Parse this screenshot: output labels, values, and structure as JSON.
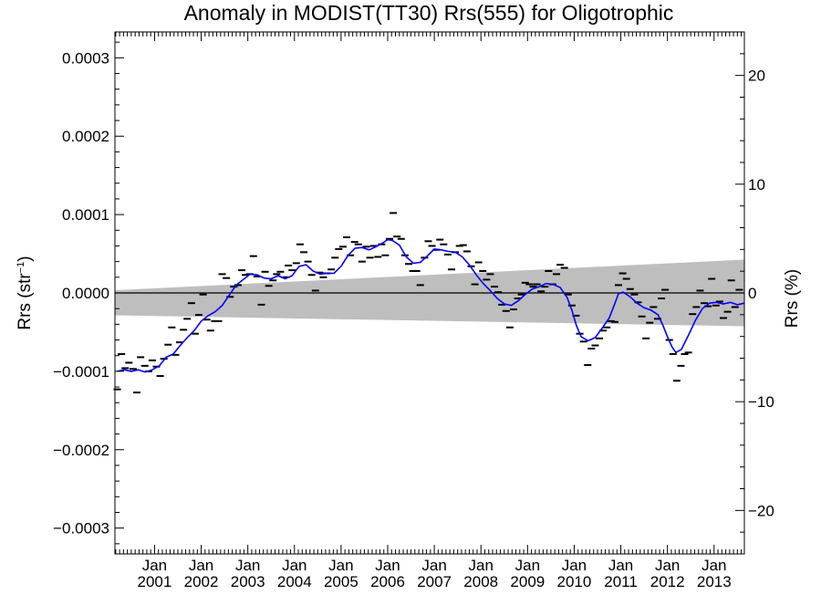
{
  "chart_data": {
    "type": "line",
    "title": "Anomaly in MODIST(TT30) Rrs(555) for Oligotrophic",
    "ylabel_left": "Rrs (str",
    "ylabel_left_sup": "−1",
    "ylabel_left_close": ")",
    "ylabel_right": "Rrs (%)",
    "xlim": [
      2000.15,
      2013.65
    ],
    "ylim_left": [
      -0.000333,
      0.000333
    ],
    "ylim_right": [
      -24,
      24
    ],
    "left_ticks": [
      {
        "value": 0.0003,
        "label": "0.0003"
      },
      {
        "value": 0.0002,
        "label": "0.0002"
      },
      {
        "value": 0.0001,
        "label": "0.0001"
      },
      {
        "value": 0.0,
        "label": "0.0000"
      },
      {
        "value": -0.0001,
        "label": "−0.0001"
      },
      {
        "value": -0.0002,
        "label": "−0.0002"
      },
      {
        "value": -0.0003,
        "label": "−0.0003"
      }
    ],
    "right_ticks": [
      {
        "value": 20,
        "label": "20"
      },
      {
        "value": 10,
        "label": "10"
      },
      {
        "value": 0,
        "label": "0"
      },
      {
        "value": -10,
        "label": "−10"
      },
      {
        "value": -20,
        "label": "−20"
      }
    ],
    "x_ticks": [
      {
        "value": 2001.0,
        "month": "Jan",
        "year": "2001"
      },
      {
        "value": 2002.0,
        "month": "Jan",
        "year": "2002"
      },
      {
        "value": 2003.0,
        "month": "Jan",
        "year": "2003"
      },
      {
        "value": 2004.0,
        "month": "Jan",
        "year": "2004"
      },
      {
        "value": 2005.0,
        "month": "Jan",
        "year": "2005"
      },
      {
        "value": 2006.0,
        "month": "Jan",
        "year": "2006"
      },
      {
        "value": 2007.0,
        "month": "Jan",
        "year": "2007"
      },
      {
        "value": 2008.0,
        "month": "Jan",
        "year": "2008"
      },
      {
        "value": 2009.0,
        "month": "Jan",
        "year": "2009"
      },
      {
        "value": 2010.0,
        "month": "Jan",
        "year": "2010"
      },
      {
        "value": 2011.0,
        "month": "Jan",
        "year": "2011"
      },
      {
        "value": 2012.0,
        "month": "Jan",
        "year": "2012"
      },
      {
        "value": 2013.0,
        "month": "Jan",
        "year": "2013"
      }
    ],
    "band": {
      "x": [
        2000.15,
        2013.65
      ],
      "upper": [
        3.5e-06,
        4.25e-05
      ],
      "lower": [
        -2.85e-05,
        -4.25e-05
      ]
    },
    "monthly_points": [
      [
        2000.2,
        -0.000123
      ],
      [
        2000.29,
        -7.8e-05
      ],
      [
        2000.37,
        -9.6e-05
      ],
      [
        2000.45,
        -8.9e-05
      ],
      [
        2000.54,
        -9.7e-05
      ],
      [
        2000.62,
        -0.000127
      ],
      [
        2000.7,
        -8.2e-05
      ],
      [
        2000.79,
        -9.3e-05
      ],
      [
        2000.87,
        -0.0001
      ],
      [
        2000.95,
        -8.6e-05
      ],
      [
        2001.04,
        -9.4e-05
      ],
      [
        2001.12,
        -0.000106
      ],
      [
        2001.2,
        -8.4e-05
      ],
      [
        2001.29,
        -6.6e-05
      ],
      [
        2001.37,
        -4.4e-05
      ],
      [
        2001.45,
        -7.9e-05
      ],
      [
        2001.54,
        -6.3e-05
      ],
      [
        2001.62,
        -4.7e-05
      ],
      [
        2001.7,
        -3.3e-05
      ],
      [
        2001.79,
        -1.3e-05
      ],
      [
        2001.87,
        -5.2e-05
      ],
      [
        2001.95,
        -2.8e-05
      ],
      [
        2002.04,
        -2e-06
      ],
      [
        2002.12,
        -3.4e-05
      ],
      [
        2002.2,
        -4.8e-05
      ],
      [
        2002.29,
        -3.6e-05
      ],
      [
        2002.37,
        -3.6e-05
      ],
      [
        2002.45,
        2.4e-05
      ],
      [
        2002.54,
        1.9e-05
      ],
      [
        2002.62,
        -5e-06
      ],
      [
        2002.7,
        8e-06
      ],
      [
        2002.79,
        1e-05
      ],
      [
        2002.87,
        2.9e-05
      ],
      [
        2002.95,
        2.3e-05
      ],
      [
        2003.04,
        2.4e-05
      ],
      [
        2003.12,
        4.7e-05
      ],
      [
        2003.2,
        2.1e-05
      ],
      [
        2003.29,
        -1.5e-05
      ],
      [
        2003.37,
        2.7e-05
      ],
      [
        2003.45,
        9e-06
      ],
      [
        2003.54,
        1.6e-05
      ],
      [
        2003.62,
        2.4e-05
      ],
      [
        2003.7,
        2.7e-05
      ],
      [
        2003.79,
        2e-05
      ],
      [
        2003.87,
        3.5e-05
      ],
      [
        2003.95,
        2.9e-05
      ],
      [
        2004.04,
        3.8e-05
      ],
      [
        2004.12,
        6.2e-05
      ],
      [
        2004.2,
        5.2e-05
      ],
      [
        2004.29,
        4e-05
      ],
      [
        2004.37,
        2.3e-05
      ],
      [
        2004.45,
        3e-06
      ],
      [
        2004.54,
        2.6e-05
      ],
      [
        2004.62,
        2e-05
      ],
      [
        2004.7,
        2.5e-05
      ],
      [
        2004.79,
        3e-05
      ],
      [
        2004.87,
        4.5e-05
      ],
      [
        2004.95,
        5.6e-05
      ],
      [
        2005.04,
        5.9e-05
      ],
      [
        2005.12,
        7.1e-05
      ],
      [
        2005.2,
        4.8e-05
      ],
      [
        2005.29,
        6.5e-05
      ],
      [
        2005.37,
        6.2e-05
      ],
      [
        2005.45,
        4e-05
      ],
      [
        2005.54,
        5.9e-05
      ],
      [
        2005.62,
        4.5e-05
      ],
      [
        2005.7,
        6e-05
      ],
      [
        2005.79,
        4.6e-05
      ],
      [
        2005.87,
        6.2e-05
      ],
      [
        2005.95,
        4.8e-05
      ],
      [
        2006.04,
        6.9e-05
      ],
      [
        2006.12,
        0.000102
      ],
      [
        2006.2,
        7.2e-05
      ],
      [
        2006.29,
        6.9e-05
      ],
      [
        2006.37,
        4.8e-05
      ],
      [
        2006.45,
        3.7e-05
      ],
      [
        2006.54,
        2.8e-05
      ],
      [
        2006.62,
        2.8e-05
      ],
      [
        2006.7,
        1e-05
      ],
      [
        2006.79,
        4.5e-05
      ],
      [
        2006.87,
        6.6e-05
      ],
      [
        2006.95,
        6e-05
      ],
      [
        2007.04,
        5.5e-05
      ],
      [
        2007.12,
        6.8e-05
      ],
      [
        2007.2,
        6.2e-05
      ],
      [
        2007.29,
        4.9e-05
      ],
      [
        2007.37,
        3e-05
      ],
      [
        2007.45,
        5.2e-05
      ],
      [
        2007.54,
        6e-05
      ],
      [
        2007.62,
        6.1e-05
      ],
      [
        2007.7,
        5.3e-05
      ],
      [
        2007.79,
        3.4e-05
      ],
      [
        2007.87,
        1.1e-05
      ],
      [
        2007.95,
        3.9e-05
      ],
      [
        2008.04,
        2.8e-05
      ],
      [
        2008.12,
        1.7e-05
      ],
      [
        2008.2,
        2.4e-05
      ],
      [
        2008.29,
        8e-06
      ],
      [
        2008.37,
        1e-06
      ],
      [
        2008.45,
        -1.5e-05
      ],
      [
        2008.54,
        -2.3e-05
      ],
      [
        2008.62,
        -4.4e-05
      ],
      [
        2008.7,
        -2.1e-05
      ],
      [
        2008.79,
        -7e-06
      ],
      [
        2008.87,
        -2e-06
      ],
      [
        2008.95,
        1.3e-05
      ],
      [
        2009.04,
        1.1e-05
      ],
      [
        2009.12,
        8e-06
      ],
      [
        2009.2,
        1.1e-05
      ],
      [
        2009.29,
        2e-06
      ],
      [
        2009.37,
        8e-06
      ],
      [
        2009.45,
        2.8e-05
      ],
      [
        2009.54,
        1.1e-05
      ],
      [
        2009.62,
        2.4e-05
      ],
      [
        2009.7,
        3.6e-05
      ],
      [
        2009.79,
        3.2e-05
      ],
      [
        2009.87,
        -2e-06
      ],
      [
        2009.95,
        -1.6e-05
      ],
      [
        2010.04,
        -2.9e-05
      ],
      [
        2010.12,
        -5.2e-05
      ],
      [
        2010.2,
        -6.2e-05
      ],
      [
        2010.29,
        -9.2e-05
      ],
      [
        2010.37,
        -7.1e-05
      ],
      [
        2010.45,
        -6.7e-05
      ],
      [
        2010.54,
        -5.8e-05
      ],
      [
        2010.62,
        -4.8e-05
      ],
      [
        2010.7,
        -4.4e-05
      ],
      [
        2010.79,
        -3.6e-05
      ],
      [
        2010.87,
        -3.7e-05
      ],
      [
        2010.95,
        1e-05
      ],
      [
        2011.04,
        2.5e-05
      ],
      [
        2011.12,
        1.8e-05
      ],
      [
        2011.2,
        5e-06
      ],
      [
        2011.29,
        -2e-06
      ],
      [
        2011.37,
        -1.2e-05
      ],
      [
        2011.45,
        -3e-05
      ],
      [
        2011.54,
        -5.8e-05
      ],
      [
        2011.62,
        -3.8e-05
      ],
      [
        2011.7,
        -1.8e-05
      ],
      [
        2011.79,
        -3.3e-05
      ],
      [
        2011.87,
        -7e-06
      ],
      [
        2011.95,
        4e-06
      ],
      [
        2012.04,
        -6e-05
      ],
      [
        2012.12,
        -7.8e-05
      ],
      [
        2012.2,
        -0.000112
      ],
      [
        2012.29,
        -9.3e-05
      ],
      [
        2012.37,
        -7.8e-05
      ],
      [
        2012.45,
        -7.6e-05
      ],
      [
        2012.54,
        -2.7e-05
      ],
      [
        2012.62,
        -1.8e-05
      ],
      [
        2012.7,
        3e-06
      ],
      [
        2012.79,
        -1.3e-05
      ],
      [
        2012.87,
        -1.7e-05
      ],
      [
        2012.95,
        1.8e-05
      ],
      [
        2013.04,
        -1.6e-05
      ],
      [
        2013.12,
        -1.1e-05
      ],
      [
        2013.2,
        -3.2e-05
      ],
      [
        2013.29,
        -2.4e-05
      ],
      [
        2013.37,
        1.6e-05
      ],
      [
        2013.45,
        -1.8e-05
      ],
      [
        2013.54,
        4e-06
      ]
    ],
    "trend_line": [
      [
        2000.2,
        -0.0001
      ],
      [
        2000.35,
        -9.8e-05
      ],
      [
        2000.5,
        -0.0001
      ],
      [
        2000.65,
        -9.8e-05
      ],
      [
        2000.8,
        -0.000101
      ],
      [
        2000.95,
        -9.8e-05
      ],
      [
        2001.1,
        -9.3e-05
      ],
      [
        2001.25,
        -8.2e-05
      ],
      [
        2001.4,
        -7.8e-05
      ],
      [
        2001.55,
        -6.7e-05
      ],
      [
        2001.7,
        -5.7e-05
      ],
      [
        2001.85,
        -4.8e-05
      ],
      [
        2002.0,
        -3.6e-05
      ],
      [
        2002.15,
        -2.9e-05
      ],
      [
        2002.3,
        -2.4e-05
      ],
      [
        2002.45,
        -1.6e-05
      ],
      [
        2002.6,
        -3e-06
      ],
      [
        2002.75,
        1e-05
      ],
      [
        2002.9,
        1.7e-05
      ],
      [
        2003.05,
        2.4e-05
      ],
      [
        2003.2,
        2.3e-05
      ],
      [
        2003.35,
        1.9e-05
      ],
      [
        2003.5,
        1.8e-05
      ],
      [
        2003.65,
        2.2e-05
      ],
      [
        2003.8,
        1.8e-05
      ],
      [
        2003.95,
        2.2e-05
      ],
      [
        2004.1,
        3.4e-05
      ],
      [
        2004.25,
        3.6e-05
      ],
      [
        2004.4,
        2.8e-05
      ],
      [
        2004.55,
        2.4e-05
      ],
      [
        2004.7,
        2.5e-05
      ],
      [
        2004.85,
        2.5e-05
      ],
      [
        2005.0,
        3.4e-05
      ],
      [
        2005.15,
        4.8e-05
      ],
      [
        2005.3,
        5.7e-05
      ],
      [
        2005.45,
        5.8e-05
      ],
      [
        2005.6,
        5.5e-05
      ],
      [
        2005.75,
        5.9e-05
      ],
      [
        2005.9,
        6.4e-05
      ],
      [
        2006.0,
        6.8e-05
      ],
      [
        2006.1,
        6.7e-05
      ],
      [
        2006.25,
        6.1e-05
      ],
      [
        2006.4,
        4.6e-05
      ],
      [
        2006.55,
        3.8e-05
      ],
      [
        2006.7,
        3.9e-05
      ],
      [
        2006.85,
        4.7e-05
      ],
      [
        2007.0,
        5.6e-05
      ],
      [
        2007.15,
        5.5e-05
      ],
      [
        2007.3,
        5.3e-05
      ],
      [
        2007.45,
        5.2e-05
      ],
      [
        2007.6,
        4.6e-05
      ],
      [
        2007.75,
        3.6e-05
      ],
      [
        2007.9,
        2.3e-05
      ],
      [
        2008.05,
        1.2e-05
      ],
      [
        2008.2,
        3e-06
      ],
      [
        2008.35,
        -7e-06
      ],
      [
        2008.5,
        -1.4e-05
      ],
      [
        2008.65,
        -1.6e-05
      ],
      [
        2008.8,
        -1e-05
      ],
      [
        2008.95,
        -2e-06
      ],
      [
        2009.1,
        5e-06
      ],
      [
        2009.25,
        8e-06
      ],
      [
        2009.4,
        1.2e-05
      ],
      [
        2009.55,
        1.1e-05
      ],
      [
        2009.7,
        7e-06
      ],
      [
        2009.85,
        -6e-06
      ],
      [
        2009.95,
        -2.2e-05
      ],
      [
        2010.05,
        -4.2e-05
      ],
      [
        2010.15,
        -5.6e-05
      ],
      [
        2010.3,
        -6.1e-05
      ],
      [
        2010.45,
        -5.7e-05
      ],
      [
        2010.6,
        -4.5e-05
      ],
      [
        2010.75,
        -3.2e-05
      ],
      [
        2010.85,
        -1.7e-05
      ],
      [
        2010.95,
        -1e-06
      ],
      [
        2011.05,
        1e-06
      ],
      [
        2011.2,
        -5e-06
      ],
      [
        2011.35,
        -1.3e-05
      ],
      [
        2011.5,
        -1.9e-05
      ],
      [
        2011.65,
        -2.2e-05
      ],
      [
        2011.8,
        -2.8e-05
      ],
      [
        2011.9,
        -4.1e-05
      ],
      [
        2012.0,
        -5.6e-05
      ],
      [
        2012.1,
        -6.9e-05
      ],
      [
        2012.18,
        -7.6e-05
      ],
      [
        2012.3,
        -7.2e-05
      ],
      [
        2012.45,
        -5.4e-05
      ],
      [
        2012.6,
        -3.5e-05
      ],
      [
        2012.75,
        -2e-05
      ],
      [
        2012.9,
        -1.3e-05
      ],
      [
        2013.05,
        -1.2e-05
      ],
      [
        2013.2,
        -1.4e-05
      ],
      [
        2013.35,
        -1.2e-05
      ],
      [
        2013.5,
        -1.5e-05
      ],
      [
        2013.65,
        -1.3e-05
      ]
    ],
    "colors": {
      "band": "#bebebe",
      "trend_line": "#0000ff",
      "points": "#000000",
      "zero_line": "#000000"
    },
    "grid": false
  }
}
